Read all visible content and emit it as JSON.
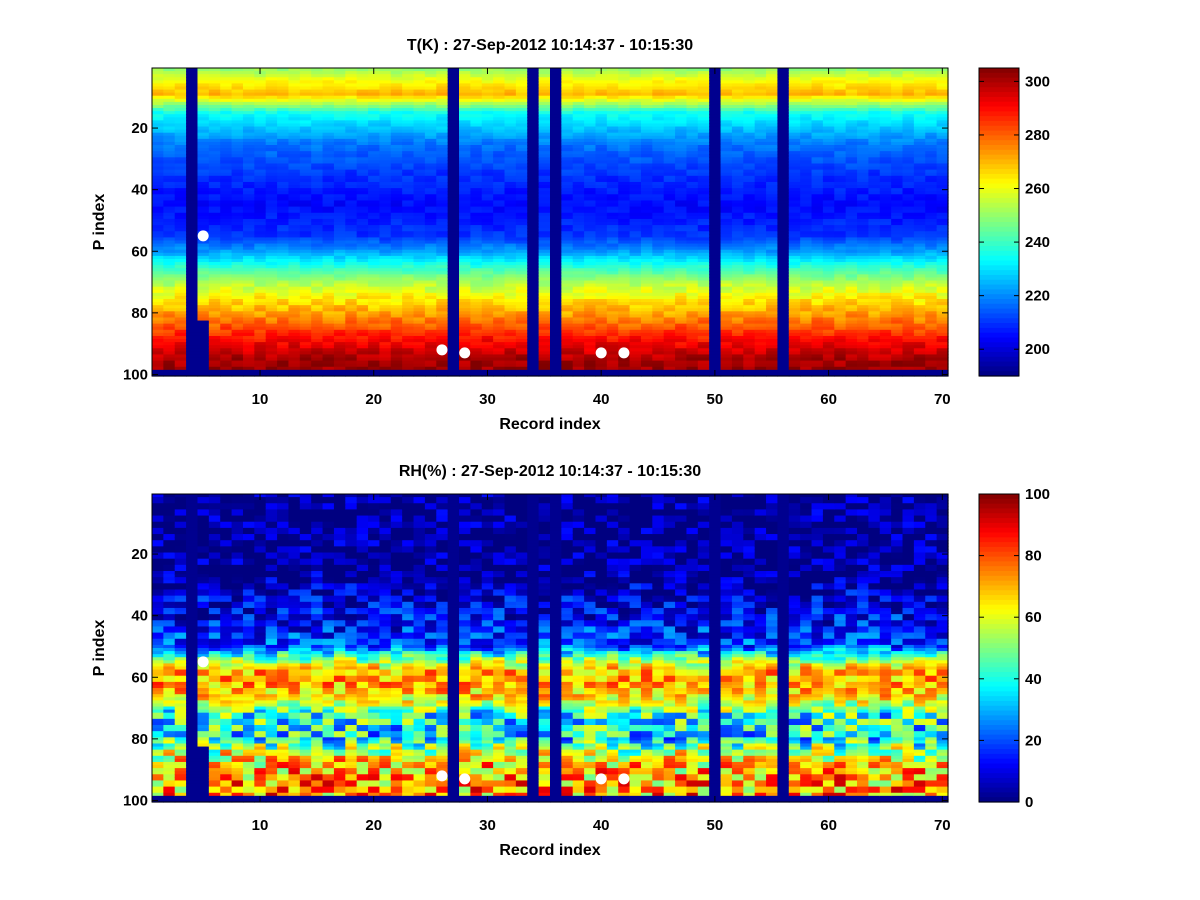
{
  "figure": {
    "background": "#ffffff",
    "colormap": "jet"
  },
  "chart_data": [
    {
      "type": "heatmap",
      "title": "T(K) : 27-Sep-2012 10:14:37 - 10:15:30",
      "xlabel": "Record index",
      "ylabel": "P index",
      "xlim": [
        1,
        70
      ],
      "ylim": [
        1,
        100
      ],
      "y_reversed": true,
      "xticks": [
        10,
        20,
        30,
        40,
        50,
        60,
        70
      ],
      "yticks": [
        20,
        40,
        60,
        80,
        100
      ],
      "x_tick_labels": [
        "10",
        "20",
        "30",
        "40",
        "50",
        "60",
        "70"
      ],
      "y_tick_labels": [
        "20",
        "40",
        "60",
        "80",
        "100"
      ],
      "colorbar": {
        "range": [
          190,
          305
        ],
        "ticks": [
          200,
          220,
          240,
          260,
          280,
          300
        ],
        "tick_labels": [
          "200",
          "220",
          "240",
          "260",
          "280",
          "300"
        ]
      },
      "profile_p_index": [
        1,
        5,
        9,
        15,
        25,
        35,
        45,
        55,
        60,
        65,
        70,
        75,
        80,
        85,
        90,
        95,
        98
      ],
      "profile_values": [
        250,
        262,
        270,
        235,
        218,
        210,
        205,
        210,
        222,
        238,
        252,
        263,
        272,
        282,
        292,
        300,
        302
      ],
      "masked_columns": [
        4,
        27,
        34,
        36,
        50,
        56
      ],
      "partial_mask": {
        "column": 5,
        "from_p_index": 83
      },
      "bottom_masked_rows_from": 99,
      "fill_value_color": "#00008f",
      "markers": [
        {
          "x": 5,
          "y": 55
        },
        {
          "x": 26,
          "y": 92
        },
        {
          "x": 28,
          "y": 93
        },
        {
          "x": 40,
          "y": 93
        },
        {
          "x": 42,
          "y": 93
        }
      ],
      "marker_color": "#ffffff"
    },
    {
      "type": "heatmap",
      "title": "RH(%) : 27-Sep-2012 10:14:37 - 10:15:30",
      "xlabel": "Record index",
      "ylabel": "P index",
      "xlim": [
        1,
        70
      ],
      "ylim": [
        1,
        100
      ],
      "y_reversed": true,
      "xticks": [
        10,
        20,
        30,
        40,
        50,
        60,
        70
      ],
      "yticks": [
        20,
        40,
        60,
        80,
        100
      ],
      "x_tick_labels": [
        "10",
        "20",
        "30",
        "40",
        "50",
        "60",
        "70"
      ],
      "y_tick_labels": [
        "20",
        "40",
        "60",
        "80",
        "100"
      ],
      "colorbar": {
        "range": [
          0,
          100
        ],
        "ticks": [
          0,
          20,
          40,
          60,
          80,
          100
        ],
        "tick_labels": [
          "0",
          "20",
          "40",
          "60",
          "80",
          "100"
        ]
      },
      "profile_p_index": [
        1,
        25,
        30,
        40,
        50,
        55,
        58,
        62,
        66,
        69,
        72,
        76,
        80,
        84,
        88,
        92,
        96,
        98
      ],
      "profile_values": [
        0,
        0,
        5,
        12,
        20,
        55,
        70,
        72,
        66,
        55,
        40,
        38,
        35,
        55,
        65,
        70,
        72,
        72
      ],
      "masked_columns": [
        4,
        27,
        34,
        36,
        50,
        56
      ],
      "partial_mask": {
        "column": 5,
        "from_p_index": 83
      },
      "bottom_masked_rows_from": 99,
      "fill_value_color": "#00008f",
      "markers": [
        {
          "x": 5,
          "y": 55
        },
        {
          "x": 26,
          "y": 92
        },
        {
          "x": 28,
          "y": 93
        },
        {
          "x": 40,
          "y": 93
        },
        {
          "x": 42,
          "y": 93
        }
      ],
      "marker_color": "#ffffff"
    }
  ]
}
